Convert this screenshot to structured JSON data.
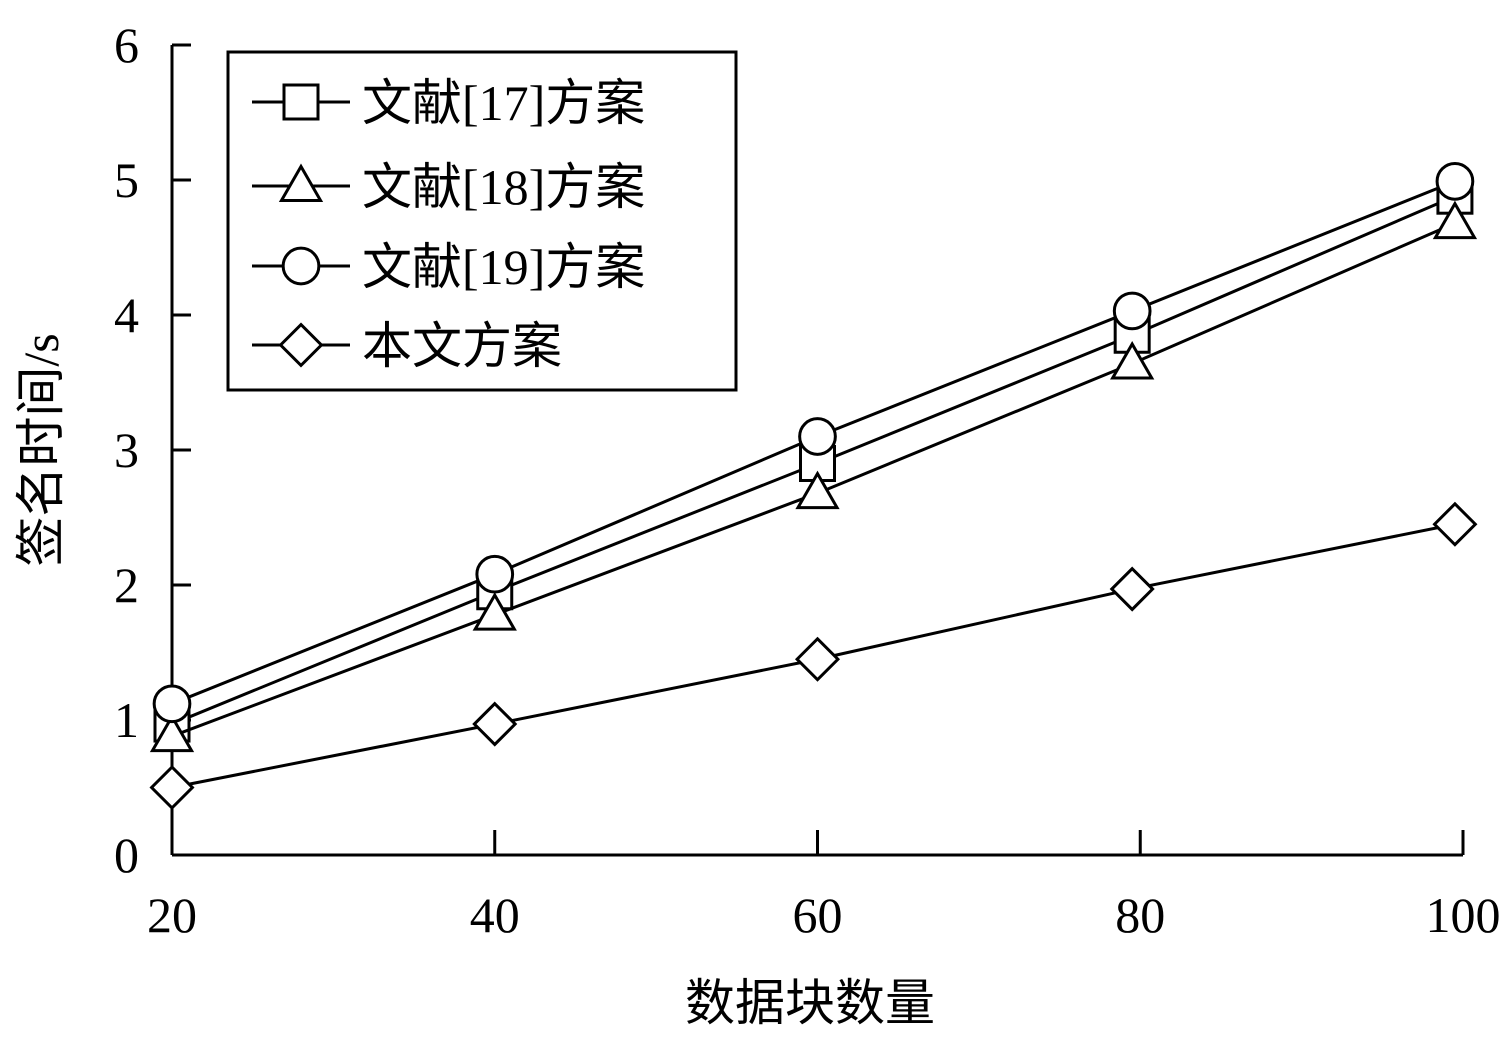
{
  "chart_data": {
    "type": "line",
    "title": "",
    "xlabel": "数据块数量",
    "ylabel": "签名时间/s",
    "x": [
      20,
      40,
      60,
      80,
      100
    ],
    "x_data": [
      20,
      40,
      60,
      79.5,
      99.5
    ],
    "xlim": [
      20,
      100
    ],
    "ylim": [
      0,
      6
    ],
    "xticks": [
      "20",
      "40",
      "60",
      "80",
      "100"
    ],
    "yticks": [
      "0",
      "1",
      "2",
      "3",
      "4",
      "5",
      "6"
    ],
    "grid": false,
    "legend_position": "top-left",
    "series": [
      {
        "name": "文献[17]方案",
        "marker": "square",
        "color": "#000000",
        "values": [
          0.97,
          1.95,
          2.9,
          3.85,
          4.88
        ]
      },
      {
        "name": "文献[18]方案",
        "marker": "triangle",
        "color": "#000000",
        "values": [
          0.88,
          1.78,
          2.68,
          3.64,
          4.68
        ]
      },
      {
        "name": "文献[19]方案",
        "marker": "circle",
        "color": "#000000",
        "values": [
          1.12,
          2.08,
          3.1,
          4.03,
          4.99
        ]
      },
      {
        "name": "本文方案",
        "marker": "diamond",
        "color": "#000000",
        "values": [
          0.5,
          0.97,
          1.45,
          1.97,
          2.45
        ]
      }
    ]
  }
}
